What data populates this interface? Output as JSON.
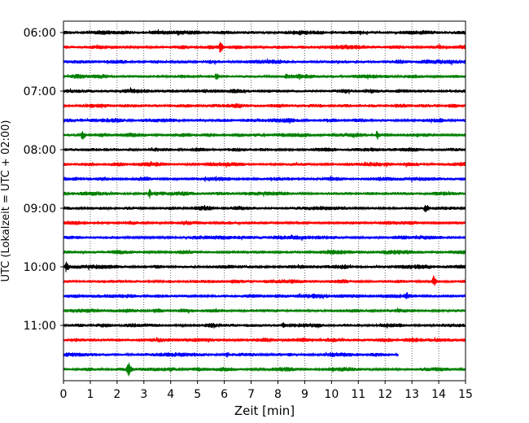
{
  "chart_data": {
    "type": "line",
    "title": "",
    "xlabel": "Zeit  [min]",
    "ylabel": "UTC (Lokalzeit = UTC + 02:00)",
    "xlim": [
      0,
      15
    ],
    "x_ticks": [
      "0",
      "1",
      "2",
      "3",
      "4",
      "5",
      "6",
      "7",
      "8",
      "9",
      "10",
      "11",
      "12",
      "13",
      "14",
      "15"
    ],
    "y_ticks": [
      "06:00",
      "07:00",
      "08:00",
      "09:00",
      "10:00",
      "11:00"
    ],
    "grid": "vertical dotted",
    "trace_interval_minutes": 15,
    "trace_colors": [
      "#000000",
      "#ff0000",
      "#0000ff",
      "#008000"
    ],
    "traces": [
      {
        "start": "06:00",
        "color": "#000000",
        "end_min": 15
      },
      {
        "start": "06:15",
        "color": "#ff0000",
        "end_min": 15,
        "events": [
          {
            "t": 5.85,
            "a": 9
          }
        ]
      },
      {
        "start": "06:30",
        "color": "#0000ff",
        "end_min": 15
      },
      {
        "start": "06:45",
        "color": "#008000",
        "end_min": 15,
        "events": [
          {
            "t": 5.7,
            "a": 6
          },
          {
            "t": 8.3,
            "a": 5
          }
        ]
      },
      {
        "start": "07:00",
        "color": "#000000",
        "end_min": 15
      },
      {
        "start": "07:15",
        "color": "#ff0000",
        "end_min": 15
      },
      {
        "start": "07:30",
        "color": "#0000ff",
        "end_min": 15
      },
      {
        "start": "07:45",
        "color": "#008000",
        "end_min": 15,
        "events": [
          {
            "t": 0.7,
            "a": 7
          },
          {
            "t": 11.7,
            "a": 7
          }
        ]
      },
      {
        "start": "08:00",
        "color": "#000000",
        "end_min": 15
      },
      {
        "start": "08:15",
        "color": "#ff0000",
        "end_min": 15
      },
      {
        "start": "08:30",
        "color": "#0000ff",
        "end_min": 15
      },
      {
        "start": "08:45",
        "color": "#008000",
        "end_min": 15,
        "events": [
          {
            "t": 3.2,
            "a": 7
          }
        ]
      },
      {
        "start": "09:00",
        "color": "#000000",
        "end_min": 15,
        "events": [
          {
            "t": 13.5,
            "a": 8
          }
        ]
      },
      {
        "start": "09:15",
        "color": "#ff0000",
        "end_min": 15
      },
      {
        "start": "09:30",
        "color": "#0000ff",
        "end_min": 15
      },
      {
        "start": "09:45",
        "color": "#008000",
        "end_min": 15
      },
      {
        "start": "10:00",
        "color": "#000000",
        "end_min": 15,
        "events": [
          {
            "t": 0.1,
            "a": 8
          }
        ]
      },
      {
        "start": "10:15",
        "color": "#ff0000",
        "end_min": 15,
        "events": [
          {
            "t": 13.8,
            "a": 8
          }
        ]
      },
      {
        "start": "10:30",
        "color": "#0000ff",
        "end_min": 15,
        "events": [
          {
            "t": 12.8,
            "a": 6
          }
        ]
      },
      {
        "start": "10:45",
        "color": "#008000",
        "end_min": 15
      },
      {
        "start": "11:00",
        "color": "#000000",
        "end_min": 15,
        "events": [
          {
            "t": 8.2,
            "a": 6
          }
        ]
      },
      {
        "start": "11:15",
        "color": "#ff0000",
        "end_min": 15
      },
      {
        "start": "11:30",
        "color": "#0000ff",
        "end_min": 12.5,
        "events": [
          {
            "t": 6.1,
            "a": 5
          }
        ]
      },
      {
        "start": "11:45",
        "color": "#008000",
        "end_min": 15,
        "events": [
          {
            "t": 2.4,
            "a": 12
          }
        ]
      }
    ]
  }
}
